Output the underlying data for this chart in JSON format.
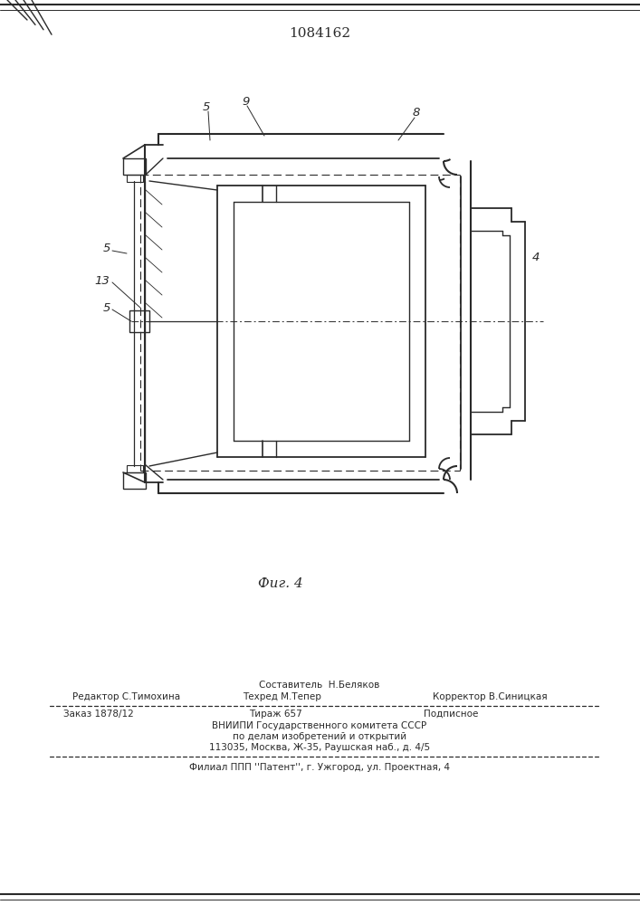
{
  "patent_number": "1084162",
  "fig_caption": "Фиг. 4",
  "bg_color": "#ffffff",
  "line_color": "#2a2a2a",
  "footer": {
    "compositor": "Составитель  Н.Беляков",
    "editor_label": "Редактор С.Тимохина",
    "techred_label": "Техред М.Тепер",
    "corrector_label": "Корректор В.Синицкая",
    "order": "Заказ 1878/12",
    "tirazh": "Тираж 657",
    "podpisnoe": "Подписное",
    "vniiipi_line1": "ВНИИПИ Государственного комитета СССР",
    "vniiipi_line2": "по делам изобретений и открытий",
    "vniiipi_line3": "113035, Москва, Ж-35, Раушская наб., д. 4/5",
    "filial": "Филиал ППП ''Патент'', г. Ужгород, ул. Проектная, 4"
  }
}
